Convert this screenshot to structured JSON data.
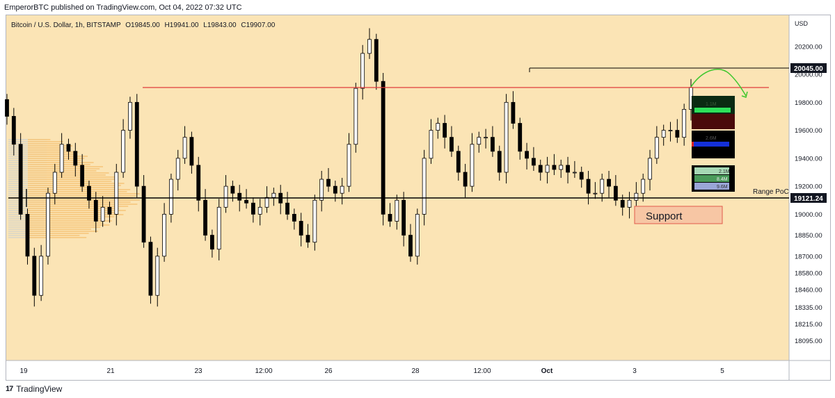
{
  "header": {
    "text": "EmperorBTC published on TradingView.com, Oct 04, 2022 07:32 UTC"
  },
  "footer": {
    "brand": "TradingView"
  },
  "colors": {
    "background": "#fbe4b5",
    "candle": "#000000",
    "resistance": "#e03a3a",
    "volume_profile": "#f6c982",
    "volume_profile_dim": "#d9d6c8",
    "support_box": "#f7c6a4",
    "support_border": "#e05a4a",
    "arrow": "#3ec72e"
  },
  "chart_data": {
    "type": "candlestick",
    "symbol_line": "Bitcoin / U.S. Dollar, 1h, BITSTAMP",
    "ohlc": {
      "open_label": "O",
      "open": "19845.00",
      "high_label": "H",
      "high": "19941.00",
      "low_label": "L",
      "low": "19843.00",
      "close_label": "C",
      "close": "19907.00"
    },
    "currency": "USD",
    "y_axis": {
      "ticks": [
        20200.0,
        20000.0,
        19800.0,
        19600.0,
        19400.0,
        19200.0,
        19000.0,
        18850.0,
        18700.0,
        18580.0,
        18460.0,
        18335.0,
        18215.0,
        18095.0
      ]
    },
    "x_axis": {
      "ticks": [
        "19",
        "21",
        "23",
        "12:00",
        "26",
        "28",
        "12:00",
        "Oct",
        "3",
        "5"
      ]
    },
    "series": [
      {
        "x": [
          0,
          1,
          2,
          3,
          4,
          5,
          6,
          7,
          8,
          9,
          10,
          11,
          12,
          13,
          14,
          15,
          16,
          17,
          18,
          19,
          20,
          21,
          22,
          23,
          24,
          25,
          26,
          27,
          28,
          29,
          30,
          31,
          32,
          33,
          34,
          35,
          36,
          37,
          38,
          39,
          40,
          41,
          42,
          43,
          44,
          45,
          46,
          47,
          48,
          49,
          50,
          51,
          52,
          53,
          54,
          55,
          56,
          57,
          58,
          59,
          60,
          61,
          62,
          63,
          64,
          65,
          66,
          67,
          68,
          69,
          70,
          71,
          72,
          73,
          74,
          75,
          76,
          77,
          78,
          79,
          80,
          81,
          82,
          83,
          84,
          85,
          86,
          87,
          88,
          89,
          90,
          91,
          92,
          93,
          94,
          95,
          96,
          97,
          98,
          99,
          100
        ],
        "close": [
          19700,
          19500,
          19000,
          18700,
          18420,
          18700,
          19150,
          19300,
          19500,
          19450,
          19350,
          19200,
          19100,
          18950,
          19050,
          19000,
          19300,
          19600,
          19800,
          19200,
          18800,
          18420,
          18700,
          19000,
          19250,
          19400,
          19550,
          19350,
          19100,
          18850,
          18750,
          19050,
          19200,
          19150,
          19100,
          19080,
          19000,
          19050,
          19120,
          19150,
          19080,
          19000,
          18950,
          18850,
          18800,
          19100,
          19250,
          19200,
          19150,
          19200,
          19500,
          19900,
          20150,
          20250,
          19950,
          19000,
          18950,
          19100,
          18850,
          18700,
          19000,
          19400,
          19600,
          19650,
          19550,
          19450,
          19300,
          19200,
          19500,
          19550,
          19550,
          19450,
          19300,
          19800,
          19650,
          19450,
          19400,
          19350,
          19300,
          19350,
          19320,
          19350,
          19300,
          19300,
          19250,
          19150,
          19150,
          19250,
          19200,
          19100,
          19050,
          19100,
          19150,
          19250,
          19400,
          19550,
          19600,
          19600,
          19550,
          19750,
          19907
        ]
      }
    ],
    "price_labels": [
      {
        "value": "20045.00"
      },
      {
        "value": "19121.24"
      }
    ],
    "annotations": {
      "range_poc": "Range PoC",
      "support": "Support"
    },
    "inset_bars": {
      "top": "1.1M",
      "middle": "2.6M",
      "bottom": [
        "2.1M",
        "8.4M",
        "9.6M"
      ]
    }
  }
}
